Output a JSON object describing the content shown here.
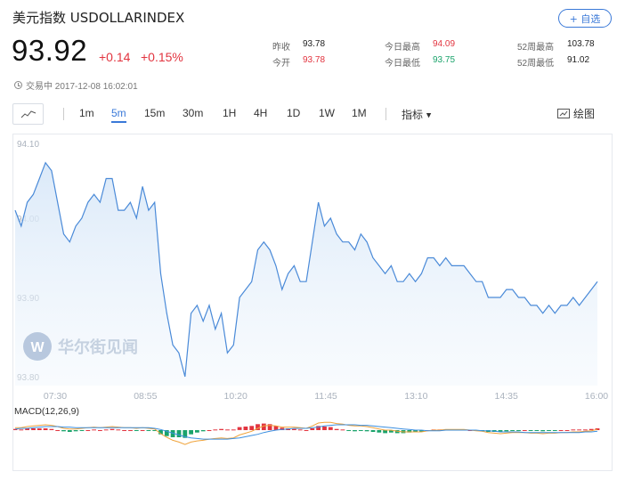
{
  "header": {
    "title": "美元指数 USDOLLARINDEX",
    "add_watchlist_label": "+ 自选"
  },
  "quote": {
    "price": "93.92",
    "change": "+0.14",
    "change_pct": "+0.15%",
    "status_text": "交易中 2017-12-08 16:02:01"
  },
  "stats": {
    "prev_close_label": "昨收",
    "prev_close": "93.78",
    "open_label": "今开",
    "open": "93.78",
    "high_label": "今日最高",
    "high": "94.09",
    "low_label": "今日最低",
    "low": "93.75",
    "w52_high_label": "52周最高",
    "w52_high": "103.78",
    "w52_low_label": "52周最低",
    "w52_low": "91.02"
  },
  "toolbar": {
    "timeframes": [
      "1m",
      "5m",
      "15m",
      "30m",
      "1H",
      "4H",
      "1D",
      "1W",
      "1M"
    ],
    "active_timeframe": "5m",
    "indicators_label": "指标",
    "draw_label": "绘图"
  },
  "watermark": "华尔街见闻",
  "colors": {
    "up": "#e2343f",
    "down": "#1aa36b",
    "accent": "#3a79d8",
    "line": "#4a8ad8"
  },
  "chart_data": {
    "type": "area",
    "ylim": [
      93.8,
      94.1
    ],
    "yticks": [
      "94.10",
      "94.00",
      "93.90",
      "93.80"
    ],
    "xticks": [
      "07:30",
      "08:55",
      "10:20",
      "11:45",
      "13:10",
      "14:35",
      "16:00"
    ],
    "price_series": [
      94.01,
      93.99,
      94.02,
      94.03,
      94.05,
      94.07,
      94.06,
      94.02,
      93.98,
      93.97,
      93.99,
      94.0,
      94.02,
      94.03,
      94.02,
      94.05,
      94.05,
      94.01,
      94.01,
      94.02,
      94.0,
      94.04,
      94.01,
      94.02,
      93.93,
      93.88,
      93.84,
      93.83,
      93.8,
      93.88,
      93.89,
      93.87,
      93.89,
      93.86,
      93.88,
      93.83,
      93.84,
      93.9,
      93.91,
      93.92,
      93.96,
      93.97,
      93.96,
      93.94,
      93.91,
      93.93,
      93.94,
      93.92,
      93.92,
      93.97,
      94.02,
      93.99,
      94.0,
      93.98,
      93.97,
      93.97,
      93.96,
      93.98,
      93.97,
      93.95,
      93.94,
      93.93,
      93.94,
      93.92,
      93.92,
      93.93,
      93.92,
      93.93,
      93.95,
      93.95,
      93.94,
      93.95,
      93.94,
      93.94,
      93.94,
      93.93,
      93.92,
      93.92,
      93.9,
      93.9,
      93.9,
      93.91,
      93.91,
      93.9,
      93.9,
      93.89,
      93.89,
      93.88,
      93.89,
      93.88,
      93.89,
      93.89,
      93.9,
      93.89,
      93.9,
      93.91,
      93.92
    ],
    "macd": {
      "label": "MACD(12,26,9)",
      "dif": [
        0.004,
        0.004,
        0.006,
        0.007,
        0.008,
        0.009,
        0.008,
        0.006,
        0.003,
        0.002,
        0.002,
        0.003,
        0.004,
        0.005,
        0.004,
        0.005,
        0.006,
        0.005,
        0.004,
        0.004,
        0.003,
        0.004,
        0.003,
        0.002,
        -0.006,
        -0.012,
        -0.017,
        -0.02,
        -0.024,
        -0.02,
        -0.018,
        -0.017,
        -0.015,
        -0.014,
        -0.013,
        -0.014,
        -0.013,
        -0.008,
        -0.005,
        -0.002,
        0.003,
        0.007,
        0.008,
        0.007,
        0.005,
        0.005,
        0.005,
        0.004,
        0.003,
        0.007,
        0.012,
        0.013,
        0.013,
        0.011,
        0.01,
        0.008,
        0.007,
        0.007,
        0.006,
        0.004,
        0.002,
        0.0,
        0.0,
        -0.002,
        -0.003,
        -0.003,
        -0.003,
        -0.003,
        -0.001,
        0.0,
        0.0,
        0.001,
        0.001,
        0.001,
        0.001,
        0.0,
        -0.001,
        -0.002,
        -0.004,
        -0.005,
        -0.006,
        -0.005,
        -0.004,
        -0.004,
        -0.004,
        -0.005,
        -0.005,
        -0.006,
        -0.005,
        -0.005,
        -0.004,
        -0.004,
        -0.003,
        -0.003,
        -0.002,
        -0.001,
        0.001
      ],
      "dea": [
        0.002,
        0.003,
        0.003,
        0.004,
        0.005,
        0.006,
        0.006,
        0.006,
        0.005,
        0.005,
        0.004,
        0.004,
        0.004,
        0.004,
        0.004,
        0.004,
        0.004,
        0.004,
        0.004,
        0.004,
        0.004,
        0.004,
        0.004,
        0.003,
        0.001,
        -0.002,
        -0.005,
        -0.008,
        -0.011,
        -0.013,
        -0.014,
        -0.015,
        -0.015,
        -0.015,
        -0.015,
        -0.015,
        -0.014,
        -0.013,
        -0.011,
        -0.009,
        -0.007,
        -0.004,
        -0.002,
        0.0,
        0.001,
        0.002,
        0.003,
        0.003,
        0.003,
        0.004,
        0.005,
        0.007,
        0.008,
        0.009,
        0.009,
        0.009,
        0.009,
        0.008,
        0.008,
        0.007,
        0.006,
        0.005,
        0.004,
        0.003,
        0.002,
        0.001,
        0.0,
        0.0,
        -0.001,
        -0.001,
        -0.001,
        0.0,
        0.0,
        0.0,
        0.0,
        0.0,
        0.0,
        -0.001,
        -0.001,
        -0.002,
        -0.003,
        -0.003,
        -0.003,
        -0.003,
        -0.004,
        -0.004,
        -0.004,
        -0.004,
        -0.004,
        -0.004,
        -0.004,
        -0.004,
        -0.004,
        -0.004,
        -0.003,
        -0.003,
        -0.002
      ]
    }
  }
}
